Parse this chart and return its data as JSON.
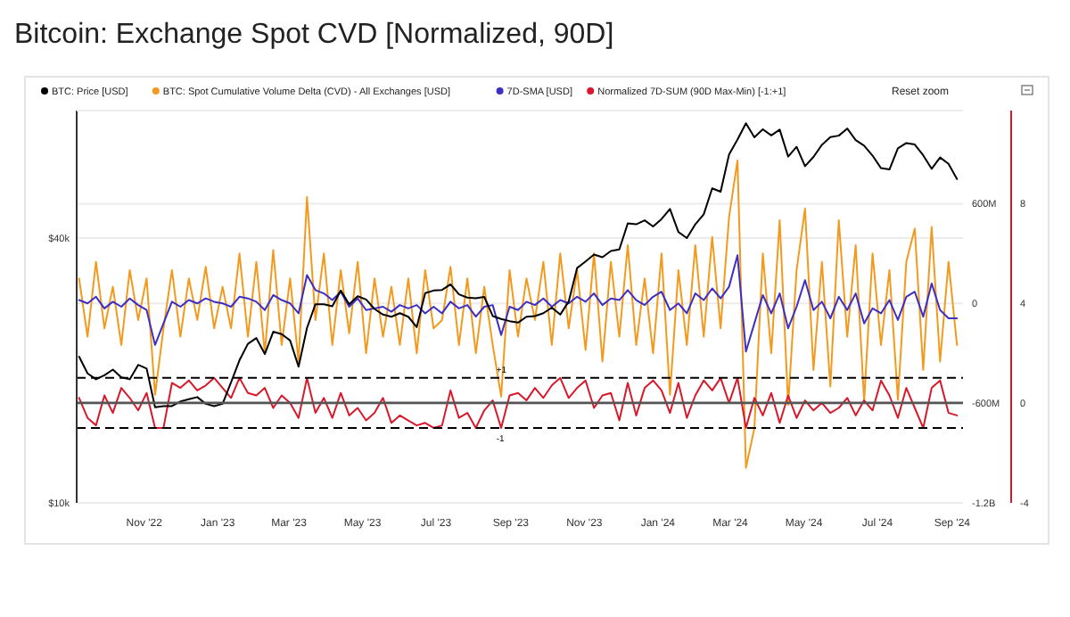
{
  "chart_data": {
    "type": "line",
    "title": "Bitcoin: Exchange Spot CVD [Normalized, 90D]",
    "annotations": [
      "Reset zoom"
    ],
    "x": [
      "2022-09-08",
      "2022-09-15",
      "2022-09-22",
      "2022-09-29",
      "2022-10-06",
      "2022-10-13",
      "2022-10-20",
      "2022-10-27",
      "2022-11-03",
      "2022-11-10",
      "2022-11-17",
      "2022-11-24",
      "2022-12-01",
      "2022-12-08",
      "2022-12-15",
      "2022-12-22",
      "2022-12-29",
      "2023-01-05",
      "2023-01-12",
      "2023-01-19",
      "2023-01-26",
      "2023-02-02",
      "2023-02-09",
      "2023-02-16",
      "2023-02-23",
      "2023-03-02",
      "2023-03-09",
      "2023-03-16",
      "2023-03-23",
      "2023-03-30",
      "2023-04-06",
      "2023-04-13",
      "2023-04-20",
      "2023-04-27",
      "2023-05-04",
      "2023-05-11",
      "2023-05-18",
      "2023-05-25",
      "2023-06-01",
      "2023-06-08",
      "2023-06-15",
      "2023-06-22",
      "2023-06-29",
      "2023-07-06",
      "2023-07-13",
      "2023-07-20",
      "2023-07-27",
      "2023-08-03",
      "2023-08-10",
      "2023-08-17",
      "2023-08-24",
      "2023-08-31",
      "2023-09-07",
      "2023-09-14",
      "2023-09-21",
      "2023-09-28",
      "2023-10-05",
      "2023-10-12",
      "2023-10-19",
      "2023-10-26",
      "2023-11-02",
      "2023-11-09",
      "2023-11-16",
      "2023-11-23",
      "2023-11-30",
      "2023-12-07",
      "2023-12-14",
      "2023-12-21",
      "2023-12-28",
      "2024-01-04",
      "2024-01-11",
      "2024-01-18",
      "2024-01-25",
      "2024-02-01",
      "2024-02-08",
      "2024-02-15",
      "2024-02-22",
      "2024-02-29",
      "2024-03-07",
      "2024-03-14",
      "2024-03-21",
      "2024-03-28",
      "2024-04-04",
      "2024-04-11",
      "2024-04-18",
      "2024-04-25",
      "2024-05-02",
      "2024-05-09",
      "2024-05-16",
      "2024-05-23",
      "2024-05-30",
      "2024-06-06",
      "2024-06-13",
      "2024-06-20",
      "2024-06-27",
      "2024-07-04",
      "2024-07-11",
      "2024-07-18",
      "2024-07-25",
      "2024-08-01",
      "2024-08-08",
      "2024-08-15",
      "2024-08-22",
      "2024-08-29",
      "2024-09-05"
    ],
    "xlim": [
      "2022-09-06",
      "2024-09-10"
    ],
    "xticks": [
      {
        "value": "2022-11-01",
        "label": "Nov '22"
      },
      {
        "value": "2023-01-01",
        "label": "Jan '23"
      },
      {
        "value": "2023-03-01",
        "label": "Mar '23"
      },
      {
        "value": "2023-05-01",
        "label": "May '23"
      },
      {
        "value": "2023-07-01",
        "label": "Jul '23"
      },
      {
        "value": "2023-09-01",
        "label": "Sep '23"
      },
      {
        "value": "2023-11-01",
        "label": "Nov '23"
      },
      {
        "value": "2024-01-01",
        "label": "Jan '24"
      },
      {
        "value": "2024-03-01",
        "label": "Mar '24"
      },
      {
        "value": "2024-05-01",
        "label": "May '24"
      },
      {
        "value": "2024-07-01",
        "label": "Jul '24"
      },
      {
        "value": "2024-09-01",
        "label": "Sep '24"
      }
    ],
    "log": "y",
    "ylim": [
      10000,
      78000
    ],
    "yticks": [
      {
        "value": 10000,
        "label": "$10k"
      },
      {
        "value": 40000,
        "label": "$40k"
      }
    ],
    "y2lim": [
      -1200000000,
      1160000000
    ],
    "y2ticks": [
      {
        "value": -1200000000,
        "label": "-1.2B"
      },
      {
        "value": -600000000,
        "label": "-600M"
      },
      0,
      {
        "value": 600000000,
        "label": "600M"
      }
    ],
    "y3lim": [
      -4,
      11.7
    ],
    "y3ticks": [
      -4,
      0,
      4,
      8
    ],
    "grid": "y",
    "legend": "top left",
    "ref_lines": [
      {
        "axis": "y3",
        "value": 1,
        "label": "+1",
        "line_style": "dashed",
        "color": "#000000"
      },
      {
        "axis": "y3",
        "value": -1,
        "label": "-1",
        "line_style": "dashed",
        "color": "#000000"
      },
      {
        "axis": "y3",
        "value": 0,
        "line_style": "solid",
        "color": "#555555"
      }
    ],
    "series": [
      {
        "name": "BTC: Price [USD]",
        "color": "#000000",
        "axis": "y",
        "values": [
          21500,
          19700,
          19100,
          19500,
          20100,
          19300,
          19100,
          20600,
          20200,
          16500,
          16600,
          16600,
          17000,
          17200,
          17400,
          16800,
          16600,
          16800,
          18800,
          21100,
          23000,
          23700,
          21800,
          24500,
          24200,
          23400,
          20400,
          25000,
          28300,
          28300,
          28000,
          30400,
          28300,
          29500,
          29000,
          27600,
          26800,
          26500,
          27000,
          26500,
          25100,
          30000,
          30400,
          30500,
          31400,
          29800,
          29300,
          29200,
          29400,
          26600,
          26200,
          25900,
          25700,
          26500,
          26600,
          27000,
          27800,
          26800,
          28700,
          34200,
          35400,
          36700,
          36200,
          37400,
          37700,
          43200,
          43000,
          43900,
          42500,
          44200,
          46600,
          41300,
          40000,
          43000,
          45300,
          51900,
          51000,
          62000,
          67000,
          73000,
          67800,
          70700,
          68500,
          70600,
          61300,
          64500,
          58300,
          61200,
          65200,
          67900,
          68400,
          71000,
          66800,
          64900,
          61600,
          57700,
          57300,
          64000,
          65800,
          65300,
          61700,
          57500,
          61000,
          59000,
          54500
        ]
      },
      {
        "name": "BTC: Spot Cumulative Volume Delta (CVD) - All Exchanges [USD]",
        "color": "#f39a1e",
        "axis": "y2",
        "values": [
          150000000,
          -200000000,
          250000000,
          -150000000,
          100000000,
          -250000000,
          200000000,
          -100000000,
          150000000,
          -550000000,
          -150000000,
          200000000,
          -200000000,
          150000000,
          -100000000,
          220000000,
          -150000000,
          100000000,
          -150000000,
          300000000,
          -200000000,
          250000000,
          -300000000,
          320000000,
          -250000000,
          150000000,
          -350000000,
          640000000,
          -100000000,
          300000000,
          -250000000,
          200000000,
          -180000000,
          250000000,
          -300000000,
          150000000,
          -200000000,
          100000000,
          -250000000,
          150000000,
          -300000000,
          200000000,
          -150000000,
          -100000000,
          220000000,
          -250000000,
          150000000,
          -300000000,
          100000000,
          -250000000,
          -560000000,
          200000000,
          -200000000,
          150000000,
          -100000000,
          250000000,
          -250000000,
          300000000,
          -150000000,
          200000000,
          -280000000,
          300000000,
          -350000000,
          250000000,
          -200000000,
          350000000,
          -250000000,
          150000000,
          -300000000,
          300000000,
          -550000000,
          200000000,
          -250000000,
          350000000,
          -200000000,
          400000000,
          -150000000,
          520000000,
          860000000,
          -990000000,
          -750000000,
          300000000,
          -300000000,
          500000000,
          -610000000,
          200000000,
          570000000,
          -400000000,
          250000000,
          -500000000,
          500000000,
          -200000000,
          350000000,
          -590000000,
          300000000,
          -250000000,
          200000000,
          -580000000,
          250000000,
          450000000,
          -400000000,
          460000000,
          -350000000,
          250000000,
          -250000000
        ]
      },
      {
        "name": "7D-SMA [USD]",
        "color": "#3d2fc4",
        "axis": "y2",
        "values": [
          20000000,
          0,
          40000000,
          -30000000,
          10000000,
          -20000000,
          30000000,
          -10000000,
          -40000000,
          -250000000,
          -120000000,
          10000000,
          -20000000,
          20000000,
          0,
          30000000,
          10000000,
          0,
          -20000000,
          40000000,
          30000000,
          10000000,
          -40000000,
          50000000,
          20000000,
          0,
          -60000000,
          170000000,
          80000000,
          60000000,
          20000000,
          70000000,
          -20000000,
          30000000,
          -40000000,
          -30000000,
          -20000000,
          -50000000,
          -10000000,
          -30000000,
          -10000000,
          -60000000,
          -20000000,
          -60000000,
          10000000,
          -30000000,
          -10000000,
          -80000000,
          -20000000,
          -10000000,
          -190000000,
          -20000000,
          -40000000,
          10000000,
          -10000000,
          30000000,
          -20000000,
          20000000,
          0,
          40000000,
          10000000,
          60000000,
          -10000000,
          30000000,
          20000000,
          80000000,
          20000000,
          -10000000,
          40000000,
          70000000,
          -40000000,
          0,
          -60000000,
          60000000,
          20000000,
          90000000,
          30000000,
          100000000,
          290000000,
          -290000000,
          -120000000,
          50000000,
          -60000000,
          60000000,
          -150000000,
          -20000000,
          140000000,
          -40000000,
          10000000,
          -90000000,
          40000000,
          -40000000,
          60000000,
          -120000000,
          -30000000,
          -60000000,
          20000000,
          -100000000,
          40000000,
          70000000,
          -80000000,
          120000000,
          -40000000,
          -90000000,
          -90000000
        ]
      },
      {
        "name": "Normalized 7D-SUM (90D Max-Min) [-1:+1]",
        "color": "#d7192b",
        "axis": "y3",
        "values": [
          0.2,
          -0.6,
          -0.9,
          0.3,
          -0.4,
          0.6,
          0.2,
          -0.3,
          0.4,
          -1,
          -1,
          0.8,
          0.6,
          0.9,
          0.5,
          0.7,
          1,
          0.6,
          0.2,
          1,
          0.4,
          0.3,
          0.6,
          -0.2,
          0.3,
          0,
          -0.6,
          1,
          -0.4,
          0.2,
          -0.6,
          0.4,
          -0.5,
          -0.2,
          -0.7,
          -0.4,
          0.2,
          -0.8,
          -0.5,
          -0.7,
          -0.9,
          -0.8,
          -1,
          -0.9,
          0.5,
          -0.6,
          -0.4,
          -1,
          -0.3,
          0.1,
          -1,
          0.3,
          0.4,
          0.1,
          0.6,
          0.2,
          0.7,
          1,
          0.2,
          0.6,
          0.9,
          -0.2,
          0.3,
          0.4,
          -0.7,
          0.8,
          -0.5,
          0.6,
          0.9,
          0.5,
          -0.4,
          0.8,
          -0.6,
          0.3,
          0.9,
          0.5,
          1,
          0,
          1,
          -1,
          0.2,
          -0.5,
          0.4,
          -0.8,
          0.3,
          -0.6,
          0.1,
          -0.3,
          0,
          -0.4,
          -0.2,
          0.2,
          -0.5,
          0.1,
          -0.3,
          0.9,
          0.3,
          -0.6,
          0.6,
          -0.2,
          -1,
          0.6,
          0.9,
          -0.4,
          -0.5
        ]
      }
    ]
  }
}
